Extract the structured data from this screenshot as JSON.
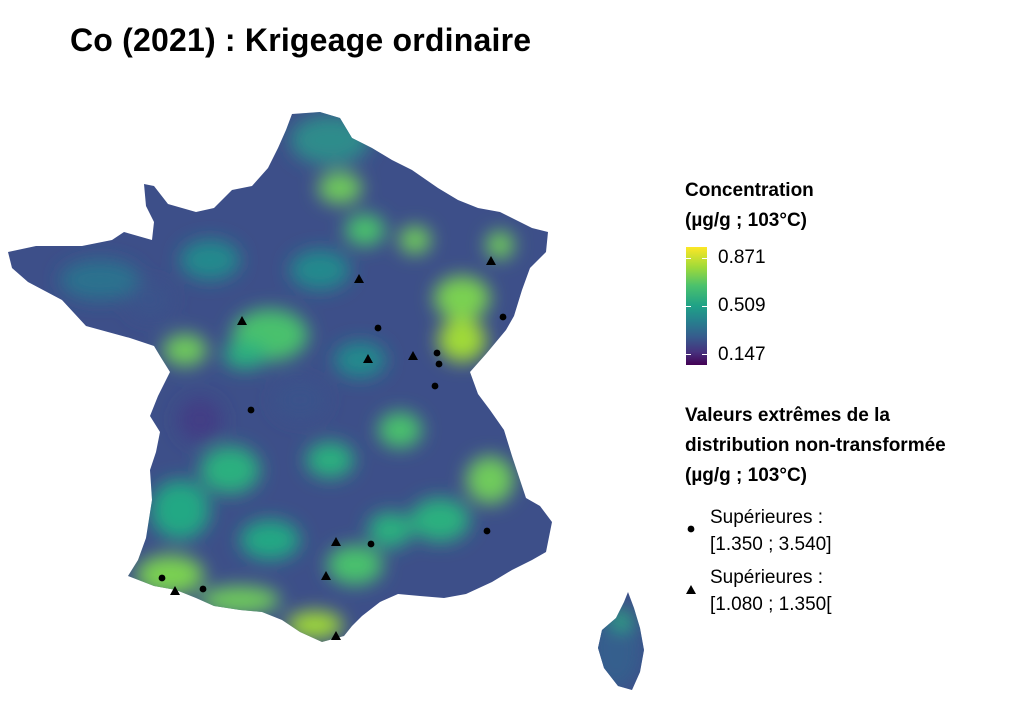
{
  "title": "Co (2021) : Krigeage ordinaire",
  "legend": {
    "concentration": {
      "title_line1": "Concentration",
      "title_line2": "(µg/g ; 103°C)",
      "max": "0.871",
      "mid": "0.509",
      "min": "0.147",
      "colormap": [
        "#440154",
        "#46327e",
        "#365c8d",
        "#277f8e",
        "#1fa187",
        "#4ac16d",
        "#a0da39",
        "#fde725"
      ]
    },
    "extremes": {
      "title_line1": "Valeurs extrêmes de la",
      "title_line2": "distribution non-transformée",
      "title_line3": "(µg/g ; 103°C)",
      "circle": {
        "label_line1": "Supérieures :",
        "label_line2": "[1.350 ; 3.540]"
      },
      "triangle": {
        "label_line1": "Supérieures :",
        "label_line2": "[1.080 ; 1.350["
      }
    }
  }
}
